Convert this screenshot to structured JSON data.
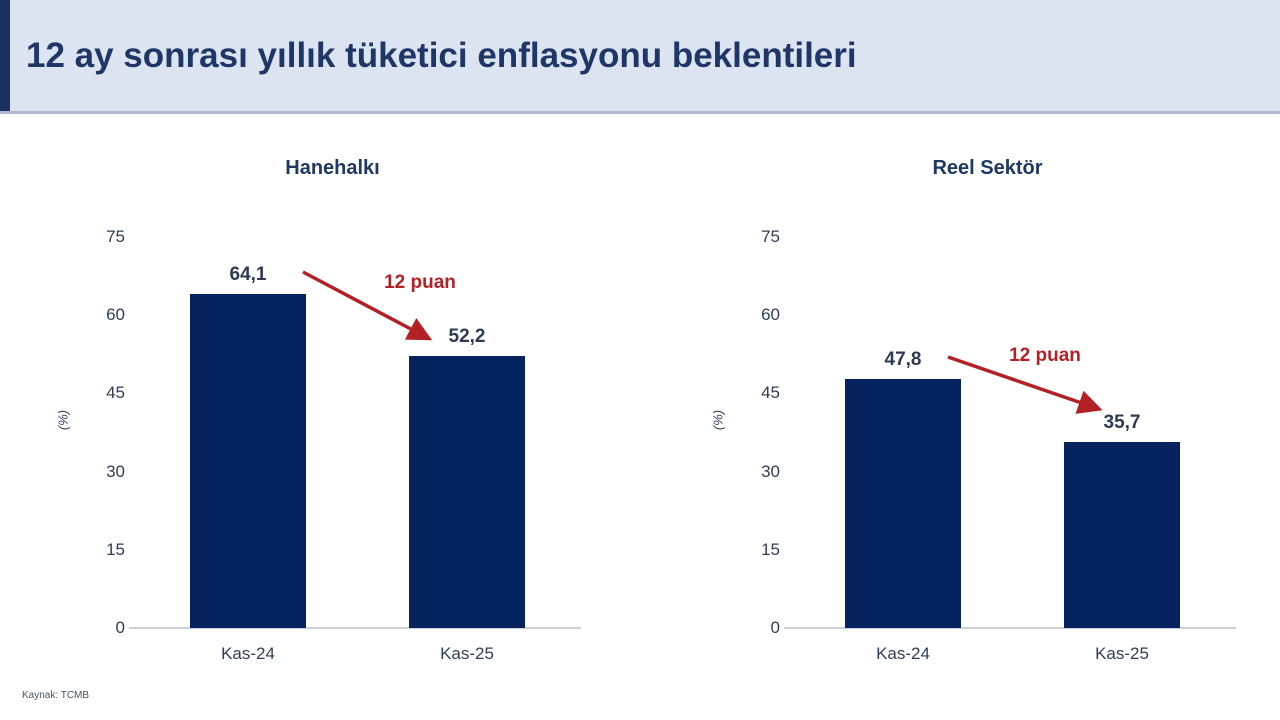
{
  "header": {
    "title": "12 ay sonrası yıllık tüketici enflasyonu beklentileri"
  },
  "footer": {
    "source": "Kaynak: TCMB"
  },
  "colors": {
    "bar": "#06235f",
    "title_navy": "#1f3864",
    "annotation_red": "#b32025",
    "header_bg": "#dce4f1",
    "accent_bar": "#1b3160"
  },
  "chart_data": [
    {
      "type": "bar",
      "title": "Hanehalkı",
      "ylabel": "(%)",
      "categories": [
        "Kas-24",
        "Kas-25"
      ],
      "values": [
        64.1,
        52.2
      ],
      "value_labels": [
        "64,1",
        "52,2"
      ],
      "annotation": "12 puan",
      "ylim": [
        0,
        75
      ],
      "yticks": [
        0,
        15,
        30,
        45,
        60,
        75
      ],
      "grid": false,
      "legend": "none"
    },
    {
      "type": "bar",
      "title": "Reel Sektör",
      "ylabel": "(%)",
      "categories": [
        "Kas-24",
        "Kas-25"
      ],
      "values": [
        47.8,
        35.7
      ],
      "value_labels": [
        "47,8",
        "35,7"
      ],
      "annotation": "12 puan",
      "ylim": [
        0,
        75
      ],
      "yticks": [
        0,
        15,
        30,
        45,
        60,
        75
      ],
      "grid": false,
      "legend": "none"
    }
  ]
}
